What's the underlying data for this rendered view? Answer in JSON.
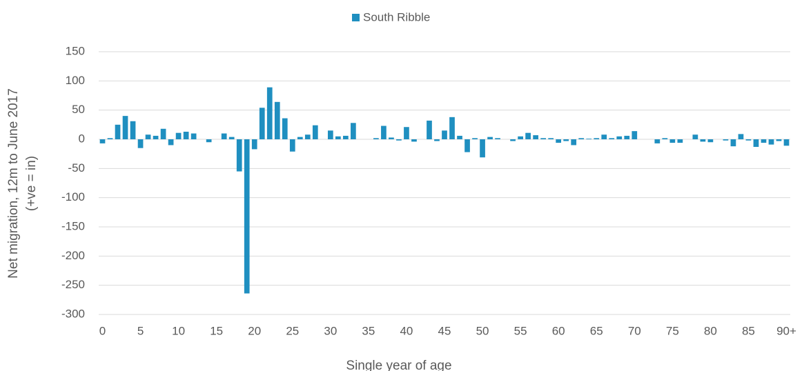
{
  "chart_data": {
    "type": "bar",
    "categories": [
      "0",
      null,
      null,
      null,
      null,
      "5",
      null,
      null,
      null,
      null,
      "10",
      null,
      null,
      null,
      null,
      "15",
      null,
      null,
      null,
      null,
      "20",
      null,
      null,
      null,
      null,
      "25",
      null,
      null,
      null,
      null,
      "30",
      null,
      null,
      null,
      null,
      "35",
      null,
      null,
      null,
      null,
      "40",
      null,
      null,
      null,
      null,
      "45",
      null,
      null,
      null,
      null,
      "50",
      null,
      null,
      null,
      null,
      "55",
      null,
      null,
      null,
      null,
      "60",
      null,
      null,
      null,
      null,
      "65",
      null,
      null,
      null,
      null,
      "70",
      null,
      null,
      null,
      null,
      "75",
      null,
      null,
      null,
      null,
      "80",
      null,
      null,
      null,
      null,
      "85",
      null,
      null,
      null,
      null,
      "90+"
    ],
    "series": [
      {
        "name": "South Ribble",
        "color": "#1f8fc0",
        "values": [
          -7,
          2,
          25,
          40,
          31,
          -15,
          8,
          6,
          18,
          -10,
          11,
          13,
          10,
          0,
          -5,
          0,
          10,
          4,
          -55,
          -264,
          -17,
          54,
          89,
          64,
          36,
          -21,
          4,
          8,
          24,
          0,
          15,
          5,
          6,
          28,
          0,
          0,
          2,
          23,
          3,
          -2,
          21,
          -4,
          0,
          32,
          -3,
          15,
          38,
          6,
          -22,
          2,
          -31,
          4,
          2,
          0,
          -3,
          5,
          11,
          7,
          2,
          2,
          -6,
          -3,
          -10,
          2,
          1,
          2,
          8,
          2,
          5,
          6,
          14,
          0,
          0,
          -7,
          2,
          -6,
          -6,
          0,
          8,
          -4,
          -5,
          0,
          -2,
          -12,
          9,
          -2,
          -13,
          -6,
          -9,
          -3,
          -11
        ]
      }
    ],
    "ylim": [
      -300,
      150
    ],
    "yticks": [
      -300,
      -250,
      -200,
      -150,
      -100,
      -50,
      0,
      50,
      100,
      150
    ],
    "y_label": [
      "Net migration, 12m to June 2017",
      "(+ve = in)"
    ],
    "x_label": "Single year of age",
    "grid": true,
    "legend": "top"
  }
}
